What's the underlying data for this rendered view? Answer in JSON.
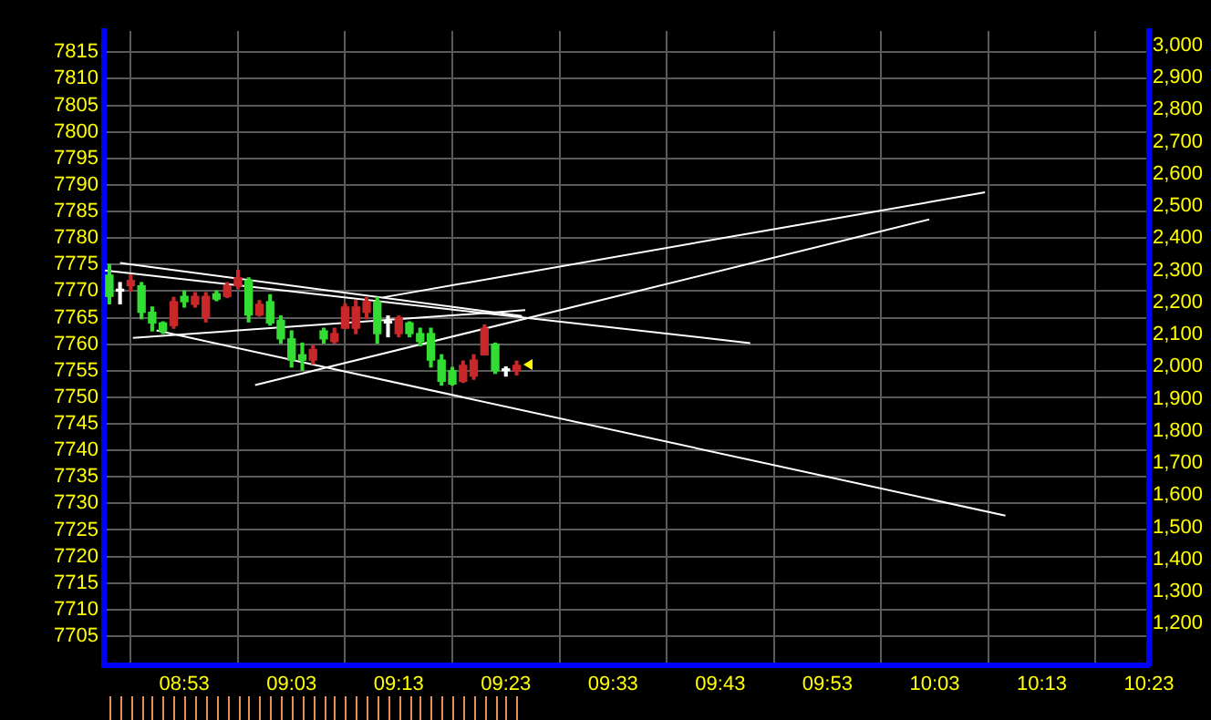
{
  "chart_data": {
    "type": "candlestick",
    "xlim": [
      8.7583,
      10.3833
    ],
    "xticks": [
      {
        "value": 8.8833,
        "label": "08:53"
      },
      {
        "value": 9.05,
        "label": "09:03"
      },
      {
        "value": 9.2167,
        "label": "09:13"
      },
      {
        "value": 9.3833,
        "label": "09:23"
      },
      {
        "value": 9.55,
        "label": "09:33"
      },
      {
        "value": 9.7167,
        "label": "09:43"
      },
      {
        "value": 9.8833,
        "label": "09:53"
      },
      {
        "value": 10.05,
        "label": "10:03"
      },
      {
        "value": 10.2167,
        "label": "10:13"
      },
      {
        "value": 10.3833,
        "label": "10:23"
      }
    ],
    "ylim": [
      7699.5,
      7819
    ],
    "yticks": [
      7705,
      7710,
      7715,
      7720,
      7725,
      7730,
      7735,
      7740,
      7745,
      7750,
      7755,
      7760,
      7765,
      7770,
      7775,
      7780,
      7785,
      7790,
      7795,
      7800,
      7805,
      7810,
      7815
    ],
    "y2lim": [
      1070,
      3045
    ],
    "y2ticks": [
      {
        "value": 1200,
        "label": "1,200"
      },
      {
        "value": 1300,
        "label": "1,300"
      },
      {
        "value": 1400,
        "label": "1,400"
      },
      {
        "value": 1500,
        "label": "1,500"
      },
      {
        "value": 1600,
        "label": "1,600"
      },
      {
        "value": 1700,
        "label": "1,700"
      },
      {
        "value": 1800,
        "label": "1,800"
      },
      {
        "value": 1900,
        "label": "1,900"
      },
      {
        "value": 2000,
        "label": "2,000"
      },
      {
        "value": 2100,
        "label": "2,100"
      },
      {
        "value": 2200,
        "label": "2,200"
      },
      {
        "value": 2300,
        "label": "2,300"
      },
      {
        "value": 2400,
        "label": "2,400"
      },
      {
        "value": 2500,
        "label": "2,500"
      },
      {
        "value": 2600,
        "label": "2,600"
      },
      {
        "value": 2700,
        "label": "2,700"
      },
      {
        "value": 2800,
        "label": "2,800"
      },
      {
        "value": 2900,
        "label": "2,900"
      },
      {
        "value": 3000,
        "label": "3,000"
      }
    ],
    "grid": true,
    "series": [
      {
        "x": [
          8.7667,
          8.7833,
          8.8,
          8.8167,
          8.8333,
          8.85,
          8.8667,
          8.8833,
          8.9,
          8.9167,
          8.9333,
          8.95,
          8.9667,
          8.9833,
          9.0,
          9.0167,
          9.0333,
          9.05,
          9.0667,
          9.0833,
          9.1,
          9.1167,
          9.1333,
          9.15,
          9.1667,
          9.1833,
          9.2,
          9.2167,
          9.2333,
          9.25,
          9.2667,
          9.2833,
          9.3,
          9.3167,
          9.3333,
          9.35,
          9.3667,
          9.3833,
          9.4
        ],
        "ohlc": [
          [
            7773,
            7775,
            7767.6,
            7769
          ],
          [
            7770,
            7771.6,
            7767.6,
            7770
          ],
          [
            7771,
            7773,
            7770,
            7772
          ],
          [
            7771,
            7771.6,
            7764.8,
            7766
          ],
          [
            7766,
            7767,
            7762.5,
            7764
          ],
          [
            7764,
            7764.2,
            7762,
            7762.5
          ],
          [
            7763.5,
            7768.8,
            7763,
            7768
          ],
          [
            7769,
            7770,
            7767,
            7768
          ],
          [
            7767.5,
            7769.7,
            7767,
            7769
          ],
          [
            7765,
            7769.7,
            7764.2,
            7769
          ],
          [
            7769.5,
            7770,
            7768.2,
            7768.5
          ],
          [
            7769,
            7771.6,
            7768.8,
            7771
          ],
          [
            7771,
            7773.9,
            7770.5,
            7772.5
          ],
          [
            7772,
            7772.5,
            7764.2,
            7765.5
          ],
          [
            7765.5,
            7768.2,
            7765.3,
            7767.5
          ],
          [
            7768,
            7769.3,
            7763.6,
            7764
          ],
          [
            7764.5,
            7765.3,
            7760.2,
            7761
          ],
          [
            7761,
            7762.5,
            7755.7,
            7757
          ],
          [
            7758,
            7760.2,
            7755.1,
            7757
          ],
          [
            7757,
            7759.7,
            7756.3,
            7759
          ],
          [
            7762.5,
            7763,
            7760.2,
            7761
          ],
          [
            7760.5,
            7763,
            7760.2,
            7762
          ],
          [
            7763,
            7767.6,
            7763,
            7767
          ],
          [
            7763,
            7768.2,
            7762,
            7767
          ],
          [
            7766,
            7768.8,
            7764.8,
            7768
          ],
          [
            7768,
            7768.8,
            7760.2,
            7762
          ],
          [
            7764,
            7765.3,
            7761.4,
            7764
          ],
          [
            7762,
            7765.3,
            7761.4,
            7765
          ],
          [
            7764,
            7764.2,
            7761.4,
            7762
          ],
          [
            7762,
            7763,
            7759.7,
            7760.5
          ],
          [
            7762,
            7763,
            7755.7,
            7757
          ],
          [
            7757,
            7758,
            7752.3,
            7753
          ],
          [
            7755,
            7755.6,
            7752.3,
            7752.5
          ],
          [
            7753,
            7756.8,
            7752.8,
            7756
          ],
          [
            7754,
            7758,
            7753.4,
            7757
          ],
          [
            7758,
            7763.6,
            7758,
            7763
          ],
          [
            7760,
            7760.2,
            7754.5,
            7755
          ],
          [
            7755,
            7755.7,
            7754,
            7755
          ],
          [
            7755,
            7756.8,
            7754.2,
            7756
          ]
        ],
        "colors": [
          "#33dd33",
          "#ffffff",
          "#c8282a",
          "#33dd33",
          "#33dd33",
          "#33dd33",
          "#c8282a",
          "#33dd33",
          "#c8282a",
          "#c8282a",
          "#33dd33",
          "#c8282a",
          "#c8282a",
          "#33dd33",
          "#c8282a",
          "#33dd33",
          "#33dd33",
          "#33dd33",
          "#33dd33",
          "#c8282a",
          "#33dd33",
          "#c8282a",
          "#c8282a",
          "#c8282a",
          "#c8282a",
          "#33dd33",
          "#ffffff",
          "#c8282a",
          "#33dd33",
          "#33dd33",
          "#33dd33",
          "#33dd33",
          "#33dd33",
          "#c8282a",
          "#c8282a",
          "#c8282a",
          "#33dd33",
          "#ffffff",
          "#c8282a"
        ]
      },
      {
        "type": "line",
        "color": "#ffffff",
        "x": [
          8.7833,
          9.4083
        ],
        "values": [
          7775.3,
          7765.3
        ]
      },
      {
        "type": "line",
        "color": "#ffffff",
        "x": [
          8.76,
          9.7633
        ],
        "values": [
          7773.9,
          7760.2
        ]
      },
      {
        "type": "line",
        "color": "#ffffff",
        "x": [
          8.84,
          10.16
        ],
        "values": [
          7762.6,
          7727.7
        ]
      },
      {
        "type": "line",
        "color": "#ffffff",
        "x": [
          9.1917,
          10.1283
        ],
        "values": [
          7768.8,
          7788.6
        ]
      },
      {
        "type": "line",
        "color": "#ffffff",
        "x": [
          8.9933,
          10.0417
        ],
        "values": [
          7752.3,
          7783.5
        ]
      },
      {
        "type": "line",
        "color": "#ffffff",
        "x": [
          8.8033,
          9.4133
        ],
        "values": [
          7761.2,
          7766.4
        ]
      }
    ]
  }
}
